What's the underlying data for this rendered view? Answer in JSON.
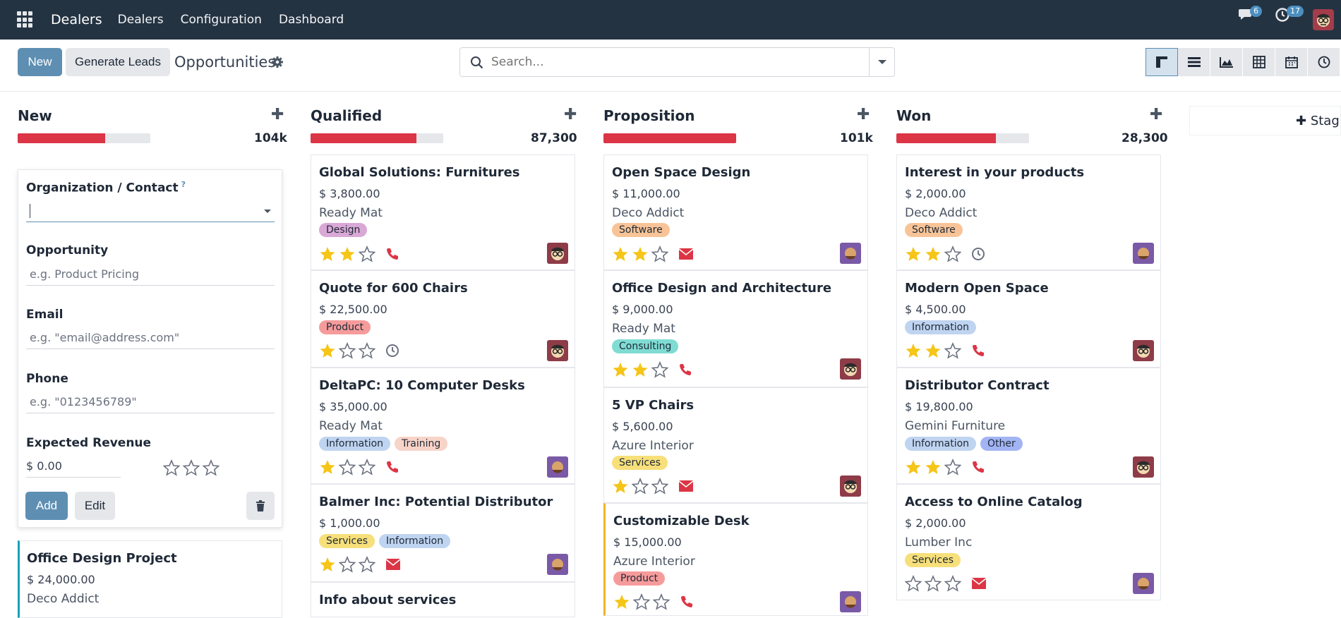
{
  "topbar": {
    "app_name": "Dealers",
    "menu": [
      "Dealers",
      "Configuration",
      "Dashboard"
    ],
    "messages_count": "6",
    "activities_count": "17"
  },
  "control": {
    "new_label": "New",
    "generate_label": "Generate Leads",
    "breadcrumb": "Opportunities",
    "search_placeholder": "Search..."
  },
  "quick_create": {
    "org_label": "Organization / Contact",
    "org_help": "?",
    "opportunity_label": "Opportunity",
    "opportunity_placeholder": "e.g. Product Pricing",
    "email_label": "Email",
    "email_placeholder": "e.g. \"email@address.com\"",
    "phone_label": "Phone",
    "phone_placeholder": "e.g. \"0123456789\"",
    "revenue_label": "Expected Revenue",
    "revenue_value": "$ 0.00",
    "add_label": "Add",
    "edit_label": "Edit"
  },
  "add_stage_label": "Stag",
  "columns": [
    {
      "name": "New",
      "total": "104k",
      "progress": 0.66,
      "cards": [
        {
          "title": "Office Design Project",
          "amount": "$ 24,000.00",
          "company": "Deco Addict"
        }
      ]
    },
    {
      "name": "Qualified",
      "total": "87,300",
      "progress": 0.8,
      "cards": [
        {
          "title": "Global Solutions: Furnitures",
          "amount": "$ 3,800.00",
          "company": "Ready Mat",
          "tags": [
            "Design"
          ]
        },
        {
          "title": "Quote for 600 Chairs",
          "amount": "$ 22,500.00",
          "tags": [
            "Product"
          ]
        },
        {
          "title": "DeltaPC: 10 Computer Desks",
          "amount": "$ 35,000.00",
          "company": "Ready Mat",
          "tags": [
            "Information",
            "Training"
          ]
        },
        {
          "title": "Balmer Inc: Potential Distributor",
          "amount": "$ 1,000.00",
          "tags": [
            "Services",
            "Information"
          ]
        },
        {
          "title": "Info about services"
        }
      ]
    },
    {
      "name": "Proposition",
      "total": "101k",
      "progress": 1.0,
      "cards": [
        {
          "title": "Open Space Design",
          "amount": "$ 11,000.00",
          "company": "Deco Addict",
          "tags": [
            "Software"
          ]
        },
        {
          "title": "Office Design and Architecture",
          "amount": "$ 9,000.00",
          "company": "Ready Mat",
          "tags": [
            "Consulting"
          ]
        },
        {
          "title": "5 VP Chairs",
          "amount": "$ 5,600.00",
          "company": "Azure Interior",
          "tags": [
            "Services"
          ]
        },
        {
          "title": "Customizable Desk",
          "amount": "$ 15,000.00",
          "company": "Azure Interior",
          "tags": [
            "Product"
          ]
        }
      ]
    },
    {
      "name": "Won",
      "total": "28,300",
      "progress": 0.75,
      "cards": [
        {
          "title": "Interest in your products",
          "amount": "$ 2,000.00",
          "company": "Deco Addict",
          "tags": [
            "Software"
          ]
        },
        {
          "title": "Modern Open Space",
          "amount": "$ 4,500.00",
          "tags": [
            "Information"
          ]
        },
        {
          "title": "Distributor Contract",
          "amount": "$ 19,800.00",
          "company": "Gemini Furniture",
          "tags": [
            "Information",
            "Other"
          ]
        },
        {
          "title": "Access to Online Catalog",
          "amount": "$ 2,000.00",
          "company": "Lumber Inc",
          "tags": [
            "Services"
          ]
        }
      ]
    }
  ],
  "colors": {
    "navbar": "#243342",
    "primary": "#5e8fb2",
    "progress_red": "#dc3545",
    "star": "#f5c518"
  }
}
